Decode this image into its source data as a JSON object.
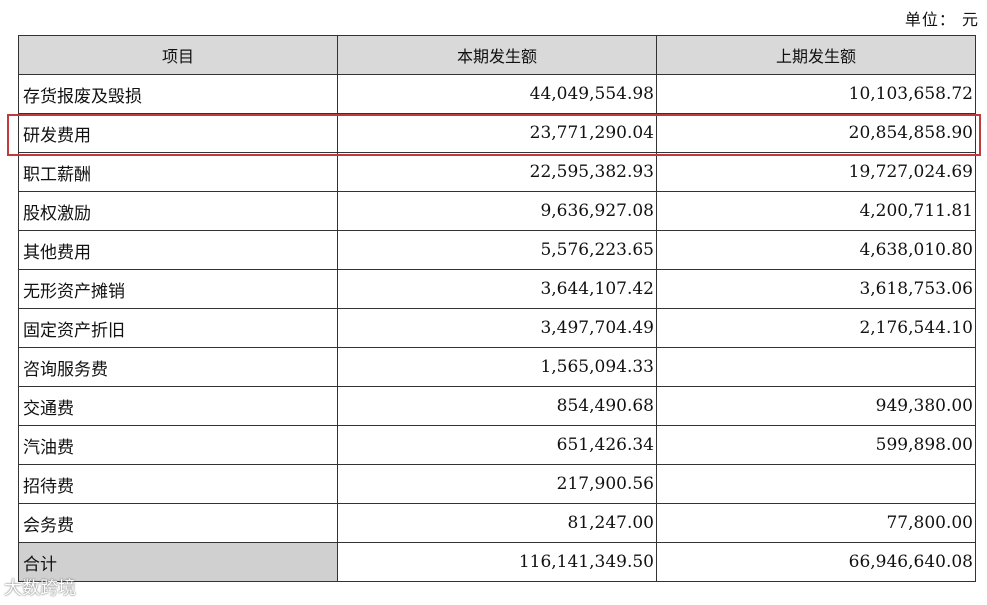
{
  "unit_label": "单位： 元",
  "table": {
    "headers": [
      "项目",
      "本期发生额",
      "上期发生额"
    ],
    "rows": [
      {
        "item": "存货报废及毁损",
        "current": "44,049,554.98",
        "previous": "10,103,658.72"
      },
      {
        "item": "研发费用",
        "current": "23,771,290.04",
        "previous": "20,854,858.90"
      },
      {
        "item": "职工薪酬",
        "current": "22,595,382.93",
        "previous": "19,727,024.69"
      },
      {
        "item": "股权激励",
        "current": "9,636,927.08",
        "previous": "4,200,711.81"
      },
      {
        "item": "其他费用",
        "current": "5,576,223.65",
        "previous": "4,638,010.80"
      },
      {
        "item": "无形资产摊销",
        "current": "3,644,107.42",
        "previous": "3,618,753.06"
      },
      {
        "item": "固定资产折旧",
        "current": "3,497,704.49",
        "previous": "2,176,544.10"
      },
      {
        "item": "咨询服务费",
        "current": "1,565,094.33",
        "previous": ""
      },
      {
        "item": "交通费",
        "current": "854,490.68",
        "previous": "949,380.00"
      },
      {
        "item": "汽油费",
        "current": "651,426.34",
        "previous": "599,898.00"
      },
      {
        "item": "招待费",
        "current": "217,900.56",
        "previous": ""
      },
      {
        "item": "会务费",
        "current": "81,247.00",
        "previous": "77,800.00"
      },
      {
        "item": "合计",
        "current": "116,141,349.50",
        "previous": "66,946,640.08"
      }
    ]
  },
  "watermark": "大数跨境",
  "colors": {
    "header_bg": "#d9d9d9",
    "highlight_border": "#c0393b",
    "total_label_bg": "#d0d0d0"
  }
}
